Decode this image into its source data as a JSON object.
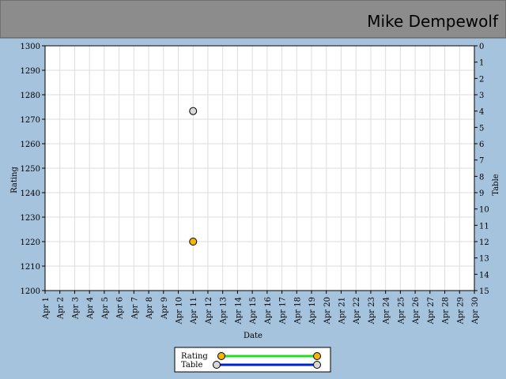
{
  "chart_data": {
    "type": "scatter",
    "title": "Mike Dempewolf",
    "x_label": "Date",
    "y_label": "Rating",
    "y2_label": "Table",
    "categories": [
      "Apr 1",
      "Apr 2",
      "Apr 3",
      "Apr 4",
      "Apr 5",
      "Apr 6",
      "Apr 7",
      "Apr 8",
      "Apr 9",
      "Apr 10",
      "Apr 11",
      "Apr 12",
      "Apr 13",
      "Apr 14",
      "Apr 15",
      "Apr 16",
      "Apr 17",
      "Apr 18",
      "Apr 19",
      "Apr 20",
      "Apr 21",
      "Apr 22",
      "Apr 23",
      "Apr 24",
      "Apr 25",
      "Apr 26",
      "Apr 27",
      "Apr 28",
      "Apr 29",
      "Apr 30"
    ],
    "series": [
      {
        "name": "Rating",
        "color": "#f5b400",
        "line_color": "#22dd22",
        "values": [
          null,
          null,
          null,
          null,
          null,
          null,
          null,
          null,
          null,
          null,
          1220,
          null,
          null,
          null,
          null,
          null,
          null,
          null,
          null,
          null,
          null,
          null,
          null,
          null,
          null,
          null,
          null,
          null,
          null,
          null
        ]
      },
      {
        "name": "Table",
        "axis": "y2",
        "color": "#d8d8d8",
        "line_color": "#0022cc",
        "values": [
          null,
          null,
          null,
          null,
          null,
          null,
          null,
          null,
          null,
          null,
          4,
          null,
          null,
          null,
          null,
          null,
          null,
          null,
          null,
          null,
          null,
          null,
          null,
          null,
          null,
          null,
          null,
          null,
          null,
          null
        ]
      }
    ],
    "ylim": [
      1200,
      1300
    ],
    "yticks": [
      1200,
      1210,
      1220,
      1230,
      1240,
      1250,
      1260,
      1270,
      1280,
      1290,
      1300
    ],
    "y2lim": [
      15,
      0
    ],
    "y2ticks": [
      0,
      1,
      2,
      3,
      4,
      5,
      6,
      7,
      8,
      9,
      10,
      11,
      12,
      13,
      14,
      15
    ],
    "grid": true
  }
}
